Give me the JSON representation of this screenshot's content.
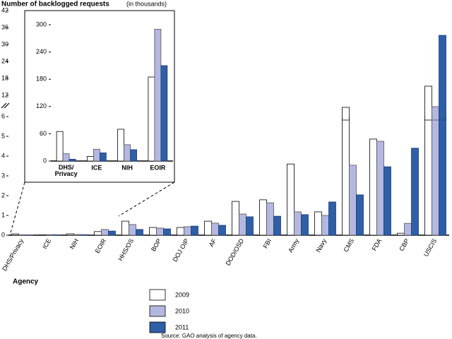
{
  "chart_data": [
    {
      "type": "bar",
      "title": "Number of backlogged requests",
      "subtitle": "(in thousands)",
      "x_label": "Agency",
      "source": "Source: GAO analysis of agency data.",
      "categories": [
        "DHS/Privacy",
        "ICE",
        "NIH",
        "EOIR",
        "HHS/OS",
        "BOP",
        "DOJ OIP",
        "AF",
        "DOD/OSD",
        "FBI",
        "Army",
        "Navy",
        "CMS",
        "FDA",
        "CBP",
        "USCIS"
      ],
      "series": [
        {
          "name": "2009",
          "color": "#ffffff",
          "values": [
            0.065,
            0.01,
            0.07,
            0.185,
            0.71,
            0.39,
            0.39,
            0.71,
            1.71,
            1.79,
            3.6,
            1.18,
            8.6,
            4.86,
            0.1,
            15.25
          ]
        },
        {
          "name": "2010",
          "color": "#b4b8e0",
          "values": [
            0.016,
            0.026,
            0.036,
            0.29,
            0.54,
            0.36,
            0.43,
            0.61,
            1.07,
            1.64,
            1.18,
            1.0,
            3.54,
            4.75,
            0.6,
            8.8
          ]
        },
        {
          "name": "2011",
          "color": "#2f5fa6",
          "values": [
            0.004,
            0.018,
            0.025,
            0.21,
            0.29,
            0.32,
            0.46,
            0.5,
            0.93,
            0.96,
            1.04,
            1.68,
            2.04,
            3.46,
            4.4,
            33.25
          ]
        }
      ],
      "ylim": [
        0,
        42
      ],
      "y_break": [
        6,
        12
      ],
      "yticks": [
        0,
        1,
        2,
        3,
        4,
        5,
        6,
        12,
        18,
        24,
        30,
        36,
        42
      ],
      "legend": "bottom"
    },
    {
      "type": "bar",
      "categories": [
        "DHS/ Privacy",
        "ICE",
        "NIH",
        "EOIR"
      ],
      "series": [
        {
          "name": "2009",
          "color": "#ffffff",
          "values": [
            65,
            10,
            70,
            185
          ]
        },
        {
          "name": "2010",
          "color": "#b4b8e0",
          "values": [
            16,
            26,
            36,
            290
          ]
        },
        {
          "name": "2011",
          "color": "#2f5fa6",
          "values": [
            4,
            18,
            25,
            210
          ]
        }
      ],
      "ylim": [
        0,
        300
      ],
      "yticks": [
        0,
        60,
        120,
        180,
        240,
        300
      ]
    }
  ]
}
